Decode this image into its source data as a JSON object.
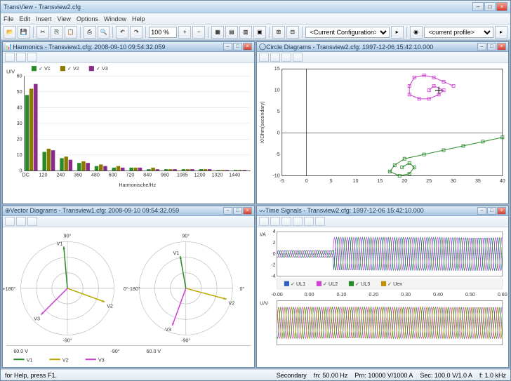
{
  "main_window": {
    "title": "TransView - Transview2.cfg",
    "menu": [
      "File",
      "Edit",
      "Insert",
      "View",
      "Options",
      "Window",
      "Help"
    ],
    "combo1": "<Current Configuration>",
    "combo2": "<current profile>",
    "zoom": "100 %"
  },
  "statusbar": {
    "help": "for Help, press F1.",
    "mode": "Secondary",
    "freq": "fn: 50.00 Hz",
    "prim": "Prn: 10000 V/1000 A",
    "sec": "Sec: 100.0 V/1.0 A",
    "rate": "f: 1.0 kHz"
  },
  "harmonics": {
    "title": "Harmonics - Transview1.cfg: 2008-09-10 09:54:32.059",
    "ylabel": "U/V",
    "xlabel": "Harmonische/Hz",
    "legend": [
      "V1",
      "V2",
      "V3"
    ],
    "colors": [
      "#2a8a2a",
      "#8a7a00",
      "#8a2a8a"
    ],
    "xticks": [
      "DC",
      "120",
      "240",
      "360",
      "480",
      "600",
      "720",
      "840",
      "960",
      "1085",
      "1200",
      "1320",
      "1440"
    ],
    "ymax": 60,
    "data": [
      [
        48,
        52,
        55
      ],
      [
        12,
        14,
        13
      ],
      [
        8,
        9,
        7
      ],
      [
        5,
        6,
        5
      ],
      [
        3,
        4,
        3
      ],
      [
        2,
        3,
        2
      ],
      [
        2,
        2,
        2
      ],
      [
        1,
        2,
        1
      ],
      [
        1,
        1,
        1
      ],
      [
        1,
        1,
        1
      ],
      [
        1,
        1,
        1
      ],
      [
        0.5,
        0.5,
        0.5
      ],
      [
        0.5,
        0.5,
        0.5
      ]
    ],
    "background": "#ffffff",
    "grid_color": "#e0e0e0"
  },
  "circle": {
    "title": "Circle Diagrams - Transview2.cfg: 1997-12-06 15:42:10.000",
    "ylabel": "X/Ohm(secondary)",
    "xticks": [
      "-5",
      "0",
      "5",
      "10",
      "15",
      "20",
      "25",
      "30",
      "35",
      "40"
    ],
    "yticks": [
      "-10",
      "-5",
      "0",
      "5",
      "10",
      "15"
    ],
    "trace1_color": "#d040d0",
    "trace2_color": "#2a8a2a",
    "trace1_points": [
      [
        30,
        11
      ],
      [
        28,
        12
      ],
      [
        26,
        13
      ],
      [
        24,
        13.5
      ],
      [
        22,
        13
      ],
      [
        21,
        11
      ],
      [
        21,
        9
      ],
      [
        23,
        8
      ],
      [
        25,
        8
      ],
      [
        27,
        9
      ],
      [
        28,
        10
      ],
      [
        26,
        11
      ],
      [
        25,
        10
      ]
    ],
    "trace2_points": [
      [
        40,
        -1
      ],
      [
        36,
        -2
      ],
      [
        32,
        -3
      ],
      [
        28,
        -4
      ],
      [
        24,
        -5
      ],
      [
        20,
        -6
      ],
      [
        18,
        -7.5
      ],
      [
        17,
        -9
      ],
      [
        19,
        -10
      ],
      [
        21,
        -9.5
      ],
      [
        22,
        -8
      ],
      [
        21,
        -7
      ],
      [
        19.5,
        -8
      ]
    ]
  },
  "vector": {
    "title": "Vector Diagrams - Transview1.cfg: 2008-09-10 09:54:32.059",
    "angle_labels": [
      "90°",
      "+180°",
      "-90°",
      "0°",
      "-180°"
    ],
    "voltage_left": "60.0  V",
    "voltage_right": "60.0  V",
    "legend": [
      "V1",
      "V2",
      "V3"
    ],
    "legend_angle": "-90°",
    "colors": [
      "#2a8a2a",
      "#b8a800",
      "#d040d0"
    ],
    "vectors1": [
      {
        "angle": 95,
        "mag": 0.9,
        "label": "V1",
        "color": "#2a8a2a"
      },
      {
        "angle": -20,
        "mag": 0.85,
        "label": "V2",
        "color": "#b8a800"
      },
      {
        "angle": 225,
        "mag": 0.8,
        "label": "V3",
        "color": "#d040d0"
      }
    ],
    "vectors2": [
      {
        "angle": 100,
        "mag": 0.7,
        "label": "V1",
        "color": "#2a8a2a"
      },
      {
        "angle": -15,
        "mag": 0.9,
        "label": "V2",
        "color": "#b8a800"
      },
      {
        "angle": 250,
        "mag": 0.85,
        "label": "V3",
        "color": "#d040d0"
      }
    ]
  },
  "timesignals": {
    "title": "Time Signals - Transview2.cfg: 1997-12-06 15:42:10.000",
    "strip1": {
      "ylabel": "I/A",
      "yticks": [
        "-4",
        "-2",
        "0",
        "2",
        "4"
      ],
      "colors": [
        "#3060c0",
        "#d040d0",
        "#2a8a2a"
      ]
    },
    "strip2": {
      "ylabel": "U/V",
      "colors": [
        "#3060c0",
        "#d040d0",
        "#2a8a2a",
        "#c09000"
      ]
    },
    "xticks": [
      "-0.00",
      "0.00",
      "0.10",
      "0.20",
      "0.30",
      "0.40",
      "0.50",
      "0.60"
    ],
    "legend": [
      "UL1",
      "UL2",
      "UL3",
      "Uen"
    ],
    "legend_colors": [
      "#3060c0",
      "#d040d0",
      "#2a8a2a",
      "#c09000"
    ]
  }
}
